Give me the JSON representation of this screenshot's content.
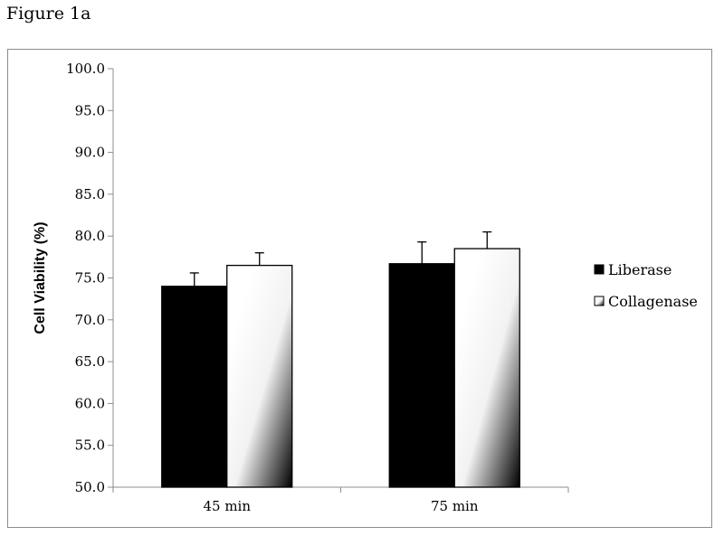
{
  "figure_label": "Figure 1a",
  "colors": {
    "liberase": "#000000",
    "collagenase_light": "#ffffff",
    "collagenase_dark": "#000000",
    "axis": "#8c8c8c"
  },
  "chart_data": {
    "type": "bar",
    "title": "",
    "xlabel": "",
    "ylabel": "Cell Viability (%)",
    "ylim": [
      50,
      100
    ],
    "ytick_step": 5,
    "ytick_labels": [
      "50.0",
      "55.0",
      "60.0",
      "65.0",
      "70.0",
      "75.0",
      "80.0",
      "85.0",
      "90.0",
      "95.0",
      "100.0"
    ],
    "categories": [
      "45 min",
      "75 min"
    ],
    "series": [
      {
        "name": "Liberase",
        "values": [
          74.0,
          76.7
        ],
        "errors": [
          1.6,
          2.6
        ]
      },
      {
        "name": "Collagenase",
        "values": [
          76.5,
          78.5
        ],
        "errors": [
          1.5,
          2.0
        ]
      }
    ],
    "legend_position": "right",
    "grid": false
  }
}
